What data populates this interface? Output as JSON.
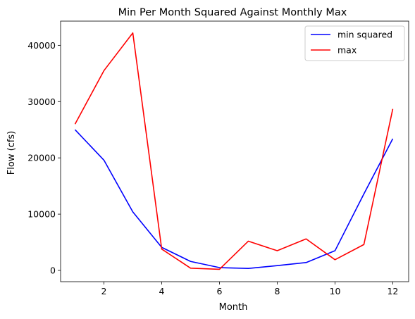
{
  "chart_data": {
    "type": "line",
    "title": "Min Per Month Squared Against Monthly Max",
    "xlabel": "Month",
    "ylabel": "Flow (cfs)",
    "x": [
      1,
      2,
      3,
      4,
      5,
      6,
      7,
      8,
      9,
      10,
      11,
      12
    ],
    "xlim": [
      0.5,
      12.55
    ],
    "ylim": [
      -2000,
      44300
    ],
    "xticks": [
      2,
      4,
      6,
      8,
      10,
      12
    ],
    "yticks": [
      0,
      10000,
      20000,
      30000,
      40000
    ],
    "grid": false,
    "legend_position": "top-right",
    "series": [
      {
        "name": "min squared",
        "color": "#0000ff",
        "values": [
          25000,
          19600,
          10400,
          4100,
          1600,
          500,
          350,
          850,
          1400,
          3500,
          13600,
          23400
        ]
      },
      {
        "name": "max",
        "color": "#ff0000",
        "values": [
          26000,
          35500,
          42200,
          3800,
          400,
          200,
          5200,
          3500,
          5600,
          1900,
          4600,
          28700
        ]
      }
    ]
  }
}
